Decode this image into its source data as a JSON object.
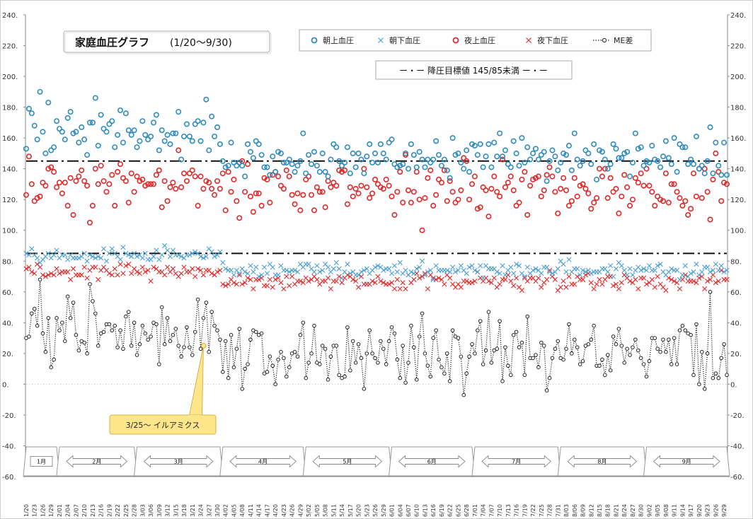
{
  "chart_data": {
    "type": "scatter",
    "title": "家庭血圧グラフ",
    "title_range": "(1/20～9/30)",
    "ylim": [
      -60,
      240
    ],
    "yticks": [
      "240.",
      "220.",
      "200.",
      "180.",
      "160.",
      "140.",
      "120.",
      "100.",
      "80.",
      "60.",
      "40.",
      "20.",
      "0.",
      "-20.",
      "-40.",
      "-60."
    ],
    "grid": false,
    "legend_position": "top",
    "series": [
      {
        "name": "朝上血圧",
        "marker": "o",
        "color": "#2e8bc0"
      },
      {
        "name": "朝下血圧",
        "marker": "x",
        "color": "#4a9fd4"
      },
      {
        "name": "夜上血圧",
        "marker": "o",
        "color": "#e02828"
      },
      {
        "name": "夜下血圧",
        "marker": "x",
        "color": "#e02828"
      },
      {
        "name": "ME差",
        "marker": "o-dotted",
        "color": "#222222"
      }
    ],
    "target_label": "ー・ー 降圧目標値 145/85未満 ー・ー",
    "target_lines": [
      145,
      85
    ],
    "annotation": {
      "text": "3/25～ イルアミクス",
      "y": 25
    },
    "months": [
      "1月",
      "2月",
      "3月",
      "4月",
      "5月",
      "6月",
      "7月",
      "8月",
      "9月"
    ],
    "x_start": "1/20",
    "x_end": "9/30",
    "x_tick_every_days": 3,
    "summary": {
      "morning_systolic_mean_before_apr": 165,
      "morning_systolic_mean_after_apr": 148,
      "morning_diastolic_mean_before_apr": 84,
      "morning_diastolic_mean_after_apr": 74,
      "evening_systolic_mean": 128,
      "evening_diastolic_mean": 68
    },
    "colors": {
      "morning": "#2e8bc0",
      "morning_dia": "#4a9fd4",
      "evening": "#e02828",
      "diff": "#222222",
      "callout": "#fde58a"
    }
  }
}
